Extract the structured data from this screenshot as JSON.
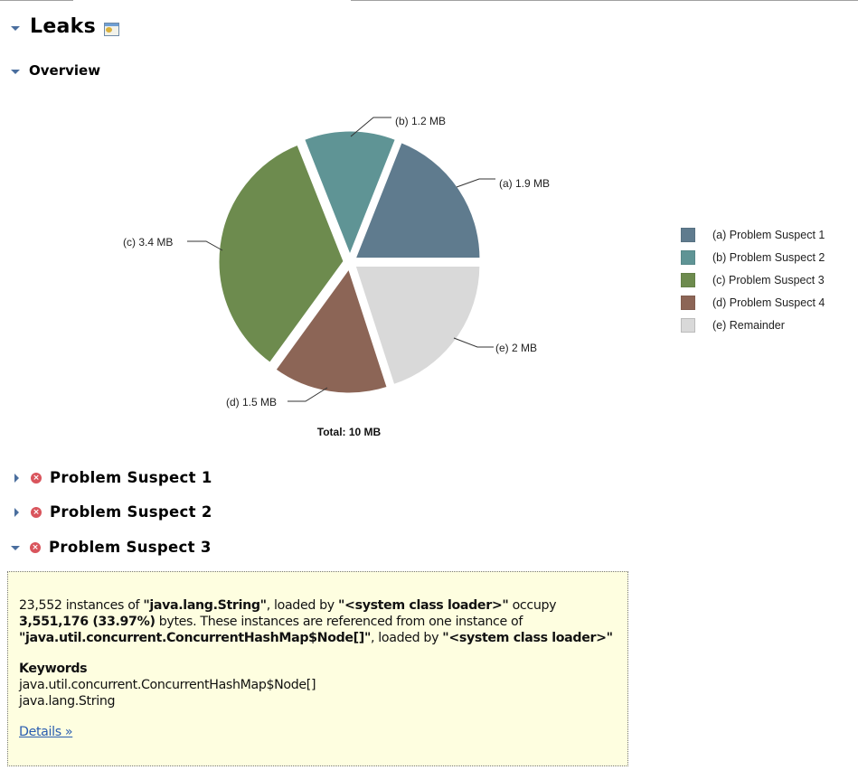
{
  "page": {
    "title": "Leaks",
    "section_title": "Overview"
  },
  "chart_data": {
    "type": "pie",
    "title": "",
    "total_label": "Total: 10 MB",
    "categories": [
      "(a) Problem Suspect 1",
      "(b) Problem Suspect 2",
      "(c) Problem Suspect 3",
      "(d) Problem Suspect 4",
      "(e) Remainder"
    ],
    "slice_labels": [
      "(a)  1.9 MB",
      "(b)  1.2 MB",
      "(c)  3.4 MB",
      "(d)  1.5 MB",
      "(e)  2 MB"
    ],
    "values": [
      1.9,
      1.2,
      3.4,
      1.5,
      2.0
    ],
    "unit": "MB",
    "colors": [
      "#5f7b8e",
      "#5f9495",
      "#6d8b4e",
      "#8c6556",
      "#d9d9d9"
    ],
    "legend_position": "right"
  },
  "legend": {
    "items": [
      {
        "label": "(a)  Problem Suspect 1",
        "color": "#5f7b8e"
      },
      {
        "label": "(b)  Problem Suspect 2",
        "color": "#5f9495"
      },
      {
        "label": "(c)  Problem Suspect 3",
        "color": "#6d8b4e"
      },
      {
        "label": "(d)  Problem Suspect 4",
        "color": "#8c6556"
      },
      {
        "label": "(e)  Remainder",
        "color": "#d9d9d9"
      }
    ]
  },
  "suspects": [
    {
      "title": "Problem Suspect 1",
      "expanded": false
    },
    {
      "title": "Problem Suspect 2",
      "expanded": false
    },
    {
      "title": "Problem Suspect 3",
      "expanded": true
    }
  ],
  "detail": {
    "count": "23,552",
    "t1": " instances of ",
    "class_name": "\"java.lang.String\"",
    "t2": ", loaded by ",
    "loader1": "\"<system class loader>\"",
    "t3": " occupy ",
    "bytes": "3,551,176 (33.97%)",
    "t4": " bytes. These instances are referenced from one instance of ",
    "ref_class": "\"java.util.concurrent.ConcurrentHashMap$Node[]\"",
    "t5": ", loaded by ",
    "loader2": "\"<system class loader>\"",
    "keywords_title": "Keywords",
    "keywords": [
      "java.util.concurrent.ConcurrentHashMap$Node[]",
      "java.lang.String"
    ],
    "details_link": "Details »"
  }
}
